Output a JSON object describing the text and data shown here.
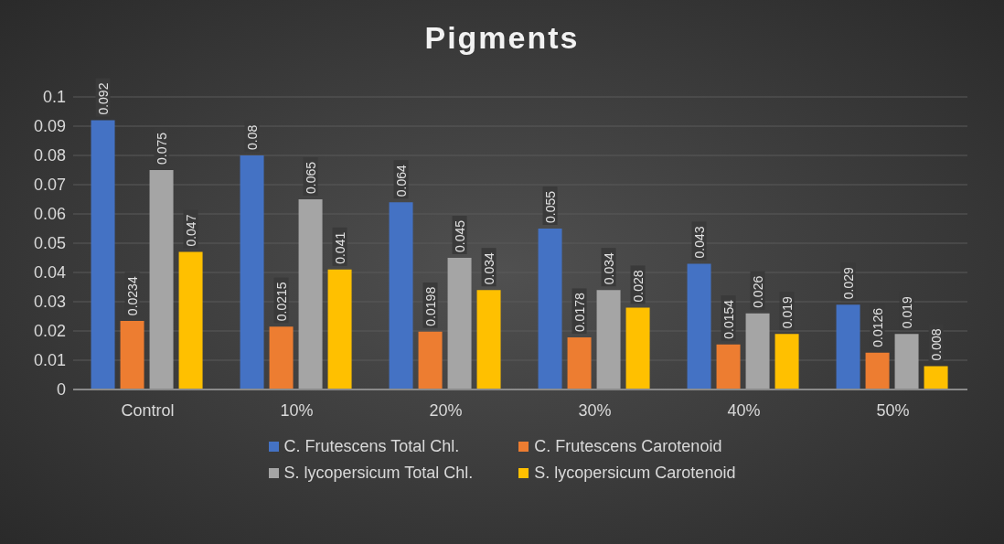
{
  "chart_data": {
    "type": "bar",
    "title": "Pigments",
    "categories": [
      "Control",
      "10%",
      "20%",
      "30%",
      "40%",
      "50%"
    ],
    "series": [
      {
        "name": "C. Frutescens Total Chl.",
        "color": "#4472c4",
        "values": [
          0.092,
          0.08,
          0.064,
          0.055,
          0.043,
          0.029
        ]
      },
      {
        "name": "C. Frutescens Carotenoid",
        "color": "#ed7d31",
        "values": [
          0.0234,
          0.0215,
          0.0198,
          0.0178,
          0.0154,
          0.0126
        ]
      },
      {
        "name": "S. lycopersicum Total Chl.",
        "color": "#a5a5a5",
        "values": [
          0.075,
          0.065,
          0.045,
          0.034,
          0.026,
          0.019
        ]
      },
      {
        "name": "S. lycopersicum Carotenoid",
        "color": "#ffc000",
        "values": [
          0.047,
          0.041,
          0.034,
          0.028,
          0.019,
          0.008
        ]
      }
    ],
    "ylim": [
      0,
      0.1
    ],
    "yticks": [
      0,
      0.01,
      0.02,
      0.03,
      0.04,
      0.05,
      0.06,
      0.07,
      0.08,
      0.09,
      0.1
    ],
    "grid": "y",
    "legend": "bottom",
    "data_labels": true
  }
}
